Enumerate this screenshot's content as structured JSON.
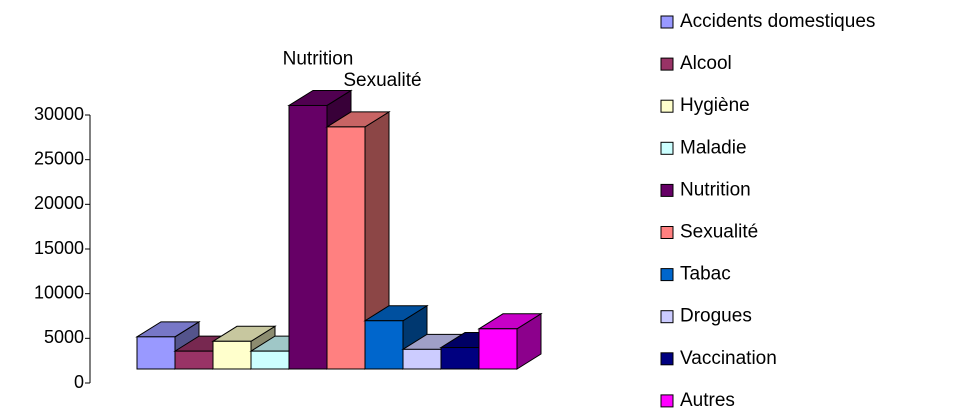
{
  "chart_data": {
    "type": "bar3d",
    "categories": [
      "Accidents domestiques",
      "Alcool",
      "Hygiène",
      "Maladie",
      "Nutrition",
      "Sexualité",
      "Tabac",
      "Drogues",
      "Vaccination",
      "Autres"
    ],
    "series": [
      {
        "values": [
          3600,
          2000,
          3100,
          2000,
          29500,
          27100,
          5400,
          2200,
          2400,
          4500
        ]
      }
    ],
    "colors": [
      "#9999ff",
      "#993366",
      "#ffffcc",
      "#ccffff",
      "#660066",
      "#ff8080",
      "#0066cc",
      "#ccccff",
      "#000080",
      "#ff00ff"
    ],
    "data_labels": [
      null,
      null,
      null,
      null,
      "Nutrition",
      "Sexualité",
      null,
      null,
      null,
      null
    ],
    "ylim": [
      0,
      30000
    ],
    "yticks": [
      0,
      5000,
      10000,
      15000,
      20000,
      25000,
      30000
    ],
    "legend": "right"
  }
}
